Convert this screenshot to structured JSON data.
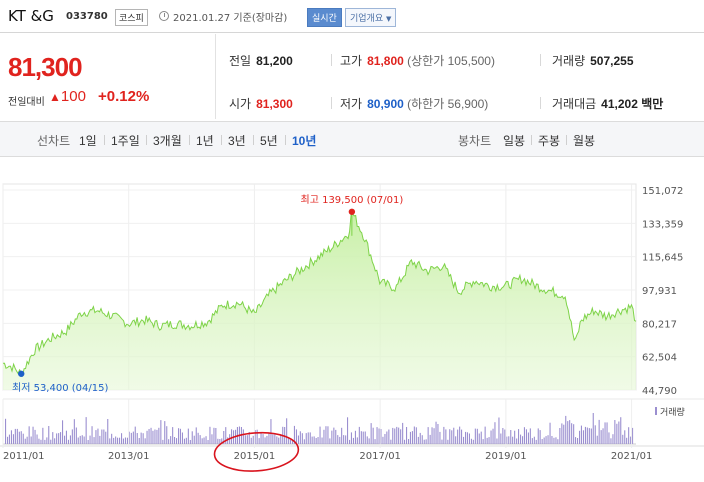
{
  "header": {
    "name": "KT &G",
    "code": "033780",
    "market": "코스피",
    "date": "2021.01.27 기준(장마감)",
    "realtime": "실시간",
    "company_info": "기업개요",
    "caret": "▼"
  },
  "price": {
    "current": "81,300",
    "change_label": "전일대비",
    "change_arrow": "▲",
    "change_amount": "100",
    "change_percent": "+0.12%"
  },
  "stats": {
    "prev_close": {
      "label": "전일",
      "value": "81,200"
    },
    "high": {
      "label": "고가",
      "value": "81,800",
      "sub": "(상한가 105,500)"
    },
    "volume": {
      "label": "거래량",
      "value": "507,255"
    },
    "open": {
      "label": "시가",
      "value": "81,300"
    },
    "low": {
      "label": "저가",
      "value": "80,900",
      "sub": "(하한가 56,900)"
    },
    "amount": {
      "label": "거래대금",
      "value": "41,202",
      "unit": "백만"
    }
  },
  "tabs": {
    "line_label": "선차트",
    "periods": [
      "1일",
      "1주일",
      "3개월",
      "1년",
      "3년",
      "5년",
      "10년"
    ],
    "active_period": "10년",
    "candle_label": "봉차트",
    "candles": [
      "일봉",
      "주봉",
      "월봉"
    ]
  },
  "chart_data": {
    "type": "area",
    "x_range": [
      "2011-01",
      "2021-01"
    ],
    "y_ticks": [
      "151,072",
      "133,359",
      "115,645",
      "97,931",
      "80,217",
      "62,504",
      "44,790"
    ],
    "ylim": [
      44790,
      151072
    ],
    "x_ticks": [
      "2011/01",
      "2013/01",
      "2015/01",
      "2017/01",
      "2019/01",
      "2021/01"
    ],
    "series": [
      {
        "x": [
          2011.0,
          2011.15,
          2011.29,
          2011.5,
          2011.75,
          2012.0,
          2012.25,
          2012.5,
          2012.75,
          2013.0,
          2013.25,
          2013.5,
          2013.75,
          2014.0,
          2014.25,
          2014.5,
          2014.75,
          2015.0,
          2015.25,
          2015.5,
          2015.75,
          2016.0,
          2016.25,
          2016.5,
          2016.55,
          2016.75,
          2017.0,
          2017.25,
          2017.5,
          2017.75,
          2018.0,
          2018.25,
          2018.5,
          2018.75,
          2019.0,
          2019.25,
          2019.5,
          2019.75,
          2019.95,
          2020.1,
          2020.2,
          2020.4,
          2020.6,
          2020.8,
          2021.0,
          2021.07
        ],
        "values": [
          59000,
          57000,
          53400,
          66000,
          72000,
          76000,
          86000,
          87000,
          84000,
          80000,
          82000,
          79000,
          80000,
          79000,
          81000,
          90000,
          91000,
          85000,
          96000,
          103000,
          109000,
          115000,
          121000,
          128000,
          139500,
          126000,
          102000,
          99000,
          113000,
          108000,
          111000,
          97000,
          103000,
          100000,
          100000,
          104000,
          100000,
          97000,
          95000,
          69000,
          82000,
          87000,
          84000,
          87000,
          89000,
          81300
        ]
      }
    ],
    "annotations": [
      {
        "label": "최고 139,500 (07/01)",
        "value": 139500
      },
      {
        "label": "최저 53,400 (04/15)",
        "value": 53400
      }
    ],
    "volume_label": "거래량",
    "line_color": "#7ed348",
    "fill_color": "#e6f8d6",
    "high_color": "#e0231e",
    "low_color": "#1e60c8",
    "volume_color": "#9b8fd0",
    "circle_annotation_color": "#d9141e"
  }
}
